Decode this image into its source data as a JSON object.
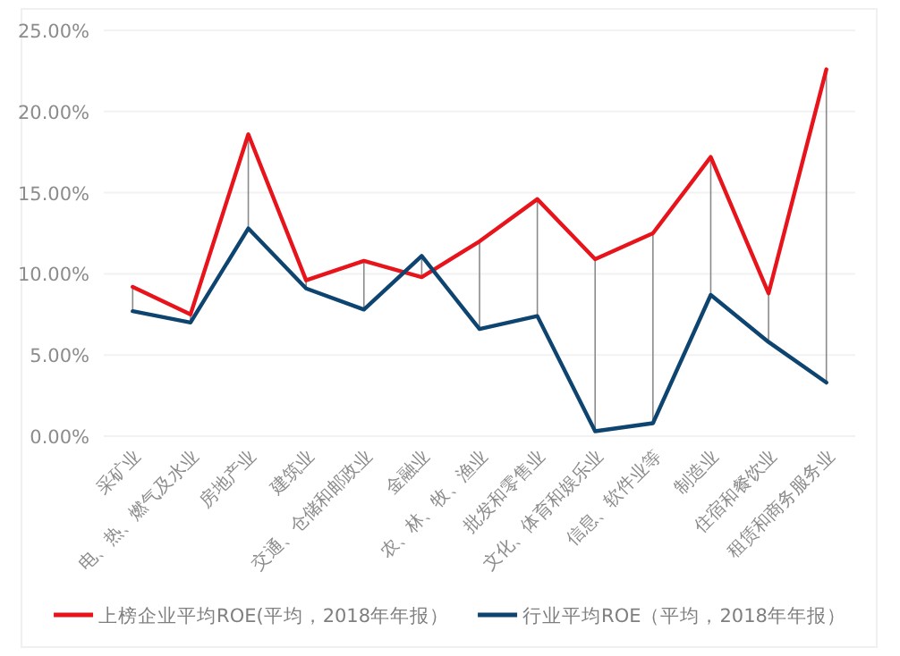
{
  "chart_data": {
    "type": "line",
    "categories": [
      "采矿业",
      "电、热、燃气及水业",
      "房地产业",
      "建筑业",
      "交通、仓储和邮政业",
      "金融业",
      "农、林、牧、渔业",
      "批发和零售业",
      "文化、体育和娱乐业",
      "信息、软件业等",
      "制造业",
      "住宿和餐饮业",
      "租赁和商务服务业"
    ],
    "series": [
      {
        "name": "上榜企业平均ROE(平均，2018年年报）",
        "color": "#e8141c",
        "values": [
          9.2,
          7.5,
          18.6,
          9.6,
          10.8,
          9.8,
          12.0,
          14.6,
          10.9,
          12.5,
          17.2,
          8.8,
          22.6
        ],
        "errors": [
          [
            7.7,
            9.2
          ],
          [
            7.0,
            7.5
          ],
          [
            12.8,
            18.6
          ],
          [
            9.1,
            9.6
          ],
          [
            7.8,
            10.8
          ],
          [
            9.8,
            11.1
          ],
          [
            6.6,
            12.0
          ],
          [
            7.4,
            14.6
          ],
          [
            0.3,
            10.9
          ],
          [
            0.8,
            12.5
          ],
          [
            8.7,
            17.2
          ],
          [
            5.8,
            8.8
          ],
          [
            3.3,
            22.6
          ]
        ]
      },
      {
        "name": "行业平均ROE（平均，2018年年报）",
        "color": "#0d4470",
        "values": [
          7.7,
          7.0,
          12.8,
          9.1,
          7.8,
          11.1,
          6.6,
          7.4,
          0.3,
          0.8,
          8.7,
          5.8,
          3.3
        ]
      }
    ],
    "ylim": [
      0,
      25
    ],
    "yticks": [
      {
        "value": 0,
        "label": "0.00%"
      },
      {
        "value": 5,
        "label": "5.00%"
      },
      {
        "value": 10,
        "label": "10.00%"
      },
      {
        "value": 15,
        "label": "15.00%"
      },
      {
        "value": 20,
        "label": "20.00%"
      },
      {
        "value": 25,
        "label": "25.00%"
      }
    ],
    "grid": "y",
    "legend": "bottom",
    "marker": "none",
    "line_style": "solid"
  }
}
